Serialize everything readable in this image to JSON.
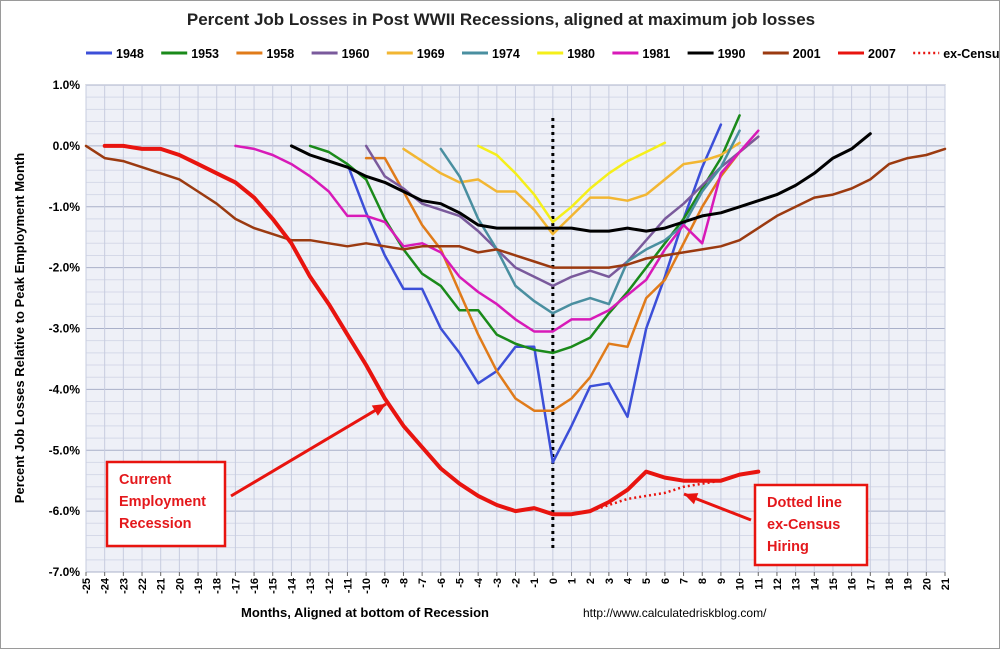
{
  "chart_data": {
    "type": "line",
    "title": "Percent Job Losses in Post WWII Recessions, aligned at maximum job losses",
    "xlabel": "Months, Aligned at bottom of Recession",
    "ylabel": "Percent Job Losses Relative to Peak Employment Month",
    "source": "http://www.calculatedriskblog.com/",
    "xlim": [
      -25,
      21
    ],
    "ylim": [
      -7.0,
      1.0
    ],
    "yticks": [
      1.0,
      0.0,
      -1.0,
      -2.0,
      -3.0,
      -4.0,
      -5.0,
      -6.0,
      -7.0
    ],
    "ytick_labels": [
      "1.0%",
      "0.0%",
      "-1.0%",
      "-2.0%",
      "-3.0%",
      "-4.0%",
      "-5.0%",
      "-6.0%",
      "-7.0%"
    ],
    "xticks": [
      -25,
      -24,
      -23,
      -22,
      -21,
      -20,
      -19,
      -18,
      -17,
      -16,
      -15,
      -14,
      -13,
      -12,
      -11,
      -10,
      -9,
      -8,
      -7,
      -6,
      -5,
      -4,
      -3,
      -2,
      -1,
      0,
      1,
      2,
      3,
      4,
      5,
      6,
      7,
      8,
      9,
      10,
      11,
      12,
      13,
      14,
      15,
      16,
      17,
      18,
      19,
      20,
      21
    ],
    "grid": true,
    "legend_position": "top",
    "vertical_marker_x": 0,
    "series": [
      {
        "name": "1948",
        "color": "#3c4fd8",
        "width": 2.5,
        "dash": false,
        "x": [
          -11,
          -10,
          -9,
          -8,
          -7,
          -6,
          -5,
          -4,
          -3,
          -2,
          -1,
          0,
          1,
          2,
          3,
          4,
          5,
          6,
          7,
          8,
          9
        ],
        "y": [
          -0.3,
          -1.1,
          -1.8,
          -2.35,
          -2.35,
          -3.0,
          -3.4,
          -3.9,
          -3.7,
          -3.3,
          -3.3,
          -5.2,
          -4.6,
          -3.95,
          -3.9,
          -4.45,
          -3.0,
          -2.15,
          -1.2,
          -0.35,
          0.35
        ]
      },
      {
        "name": "1953",
        "color": "#1a8a1a",
        "width": 2.5,
        "dash": false,
        "x": [
          -13,
          -12,
          -11,
          -10,
          -9,
          -8,
          -7,
          -6,
          -5,
          -4,
          -3,
          -2,
          -1,
          0,
          1,
          2,
          3,
          4,
          5,
          6,
          7,
          8,
          9,
          10
        ],
        "y": [
          0.0,
          -0.1,
          -0.3,
          -0.55,
          -1.2,
          -1.7,
          -2.1,
          -2.3,
          -2.7,
          -2.7,
          -3.1,
          -3.25,
          -3.35,
          -3.4,
          -3.3,
          -3.15,
          -2.75,
          -2.4,
          -2.0,
          -1.6,
          -1.2,
          -0.7,
          -0.2,
          0.5
        ]
      },
      {
        "name": "1958",
        "color": "#e07b1a",
        "width": 2.5,
        "dash": false,
        "x": [
          -10,
          -9,
          -8,
          -7,
          -6,
          -5,
          -4,
          -3,
          -2,
          -1,
          0,
          1,
          2,
          3,
          4,
          5,
          6,
          7,
          8,
          9,
          10,
          11
        ],
        "y": [
          -0.2,
          -0.2,
          -0.75,
          -1.3,
          -1.7,
          -2.4,
          -3.1,
          -3.7,
          -4.15,
          -4.35,
          -4.35,
          -4.15,
          -3.8,
          -3.25,
          -3.3,
          -2.5,
          -2.2,
          -1.6,
          -1.0,
          -0.5,
          -0.1,
          0.15
        ]
      },
      {
        "name": "1960",
        "color": "#7a5a9c",
        "width": 2.5,
        "dash": false,
        "x": [
          -10,
          -9,
          -8,
          -7,
          -6,
          -5,
          -4,
          -3,
          -2,
          -1,
          0,
          1,
          2,
          3,
          4,
          5,
          6,
          7,
          8,
          9,
          10,
          11
        ],
        "y": [
          0.0,
          -0.5,
          -0.7,
          -0.95,
          -1.05,
          -1.15,
          -1.4,
          -1.7,
          -2.0,
          -2.15,
          -2.3,
          -2.15,
          -2.05,
          -2.15,
          -1.9,
          -1.55,
          -1.2,
          -0.95,
          -0.65,
          -0.35,
          -0.1,
          0.15
        ]
      },
      {
        "name": "1969",
        "color": "#f2b632",
        "width": 2.5,
        "dash": false,
        "x": [
          -8,
          -7,
          -6,
          -5,
          -4,
          -3,
          -2,
          -1,
          0,
          1,
          2,
          3,
          4,
          5,
          6,
          7,
          8,
          9,
          10
        ],
        "y": [
          -0.05,
          -0.25,
          -0.45,
          -0.6,
          -0.55,
          -0.75,
          -0.75,
          -1.05,
          -1.45,
          -1.15,
          -0.85,
          -0.85,
          -0.9,
          -0.8,
          -0.55,
          -0.3,
          -0.25,
          -0.15,
          0.05
        ]
      },
      {
        "name": "1974",
        "color": "#4a8fa0",
        "width": 2.5,
        "dash": false,
        "x": [
          -6,
          -5,
          -4,
          -3,
          -2,
          -1,
          0,
          1,
          2,
          3,
          4,
          5,
          6,
          7,
          8,
          9,
          10
        ],
        "y": [
          -0.05,
          -0.5,
          -1.2,
          -1.7,
          -2.3,
          -2.55,
          -2.75,
          -2.6,
          -2.5,
          -2.6,
          -1.9,
          -1.7,
          -1.55,
          -1.3,
          -0.75,
          -0.35,
          0.25
        ]
      },
      {
        "name": "1980",
        "color": "#f5ef1a",
        "width": 2.5,
        "dash": false,
        "x": [
          -4,
          -3,
          -2,
          -1,
          0,
          1,
          2,
          3,
          4,
          5,
          6
        ],
        "y": [
          0.0,
          -0.15,
          -0.45,
          -0.8,
          -1.25,
          -1.0,
          -0.7,
          -0.45,
          -0.25,
          -0.1,
          0.05
        ]
      },
      {
        "name": "1981",
        "color": "#d81ab8",
        "width": 2.5,
        "dash": false,
        "x": [
          -17,
          -16,
          -15,
          -14,
          -13,
          -12,
          -11,
          -10,
          -9,
          -8,
          -7,
          -6,
          -5,
          -4,
          -3,
          -2,
          -1,
          0,
          1,
          2,
          3,
          4,
          5,
          6,
          7,
          8,
          9,
          10,
          11
        ],
        "y": [
          0.0,
          -0.05,
          -0.15,
          -0.3,
          -0.5,
          -0.75,
          -1.15,
          -1.15,
          -1.25,
          -1.65,
          -1.6,
          -1.75,
          -2.15,
          -2.4,
          -2.6,
          -2.85,
          -3.05,
          -3.05,
          -2.85,
          -2.85,
          -2.7,
          -2.45,
          -2.2,
          -1.7,
          -1.3,
          -1.6,
          -0.45,
          -0.1,
          0.25
        ]
      },
      {
        "name": "1990",
        "color": "#000000",
        "width": 3,
        "dash": false,
        "x": [
          -14,
          -13,
          -12,
          -11,
          -10,
          -9,
          -8,
          -7,
          -6,
          -5,
          -4,
          -3,
          -2,
          -1,
          0,
          1,
          2,
          3,
          4,
          5,
          6,
          7,
          8,
          9,
          10,
          11,
          12,
          13,
          14,
          15,
          16,
          17
        ],
        "y": [
          0.0,
          -0.15,
          -0.25,
          -0.35,
          -0.5,
          -0.6,
          -0.75,
          -0.9,
          -0.95,
          -1.1,
          -1.3,
          -1.35,
          -1.35,
          -1.35,
          -1.35,
          -1.35,
          -1.4,
          -1.4,
          -1.35,
          -1.4,
          -1.35,
          -1.25,
          -1.15,
          -1.1,
          -1.0,
          -0.9,
          -0.8,
          -0.65,
          -0.45,
          -0.2,
          -0.05,
          0.2
        ]
      },
      {
        "name": "2001",
        "color": "#9b3a10",
        "width": 2.5,
        "dash": false,
        "x": [
          -25,
          -24,
          -23,
          -22,
          -21,
          -20,
          -19,
          -18,
          -17,
          -16,
          -15,
          -14,
          -13,
          -12,
          -11,
          -10,
          -9,
          -8,
          -7,
          -6,
          -5,
          -4,
          -3,
          -2,
          -1,
          0,
          1,
          2,
          3,
          4,
          5,
          6,
          7,
          8,
          9,
          10,
          11,
          12,
          13,
          14,
          15,
          16,
          17,
          18,
          19,
          20,
          21
        ],
        "y": [
          0.0,
          -0.2,
          -0.25,
          -0.35,
          -0.45,
          -0.55,
          -0.75,
          -0.95,
          -1.2,
          -1.35,
          -1.45,
          -1.55,
          -1.55,
          -1.6,
          -1.65,
          -1.6,
          -1.65,
          -1.7,
          -1.65,
          -1.65,
          -1.65,
          -1.75,
          -1.7,
          -1.8,
          -1.9,
          -2.0,
          -2.0,
          -2.0,
          -2.0,
          -1.95,
          -1.85,
          -1.8,
          -1.75,
          -1.7,
          -1.65,
          -1.55,
          -1.35,
          -1.15,
          -1.0,
          -0.85,
          -0.8,
          -0.7,
          -0.55,
          -0.3,
          -0.2,
          -0.15,
          -0.05
        ]
      },
      {
        "name": "2007",
        "color": "#e8140f",
        "width": 4,
        "dash": false,
        "x": [
          -24,
          -23,
          -22,
          -21,
          -20,
          -19,
          -18,
          -17,
          -16,
          -15,
          -14,
          -13,
          -12,
          -11,
          -10,
          -9,
          -8,
          -7,
          -6,
          -5,
          -4,
          -3,
          -2,
          -1,
          0,
          1,
          2,
          3,
          4,
          5,
          6,
          7,
          8,
          9,
          10,
          11
        ],
        "y": [
          0.0,
          0.0,
          -0.05,
          -0.05,
          -0.15,
          -0.3,
          -0.45,
          -0.6,
          -0.85,
          -1.2,
          -1.6,
          -2.15,
          -2.6,
          -3.1,
          -3.6,
          -4.15,
          -4.6,
          -4.95,
          -5.3,
          -5.55,
          -5.75,
          -5.9,
          -6.0,
          -5.95,
          -6.05,
          -6.05,
          -6.0,
          -5.85,
          -5.65,
          -5.35,
          -5.45,
          -5.5,
          -5.5,
          -5.5,
          -5.4,
          -5.35
        ]
      },
      {
        "name": "ex-Census",
        "color": "#e8140f",
        "width": 2.5,
        "dash": true,
        "x": [
          1,
          2,
          3,
          4,
          5,
          6,
          7,
          8,
          9
        ],
        "y": [
          -6.05,
          -6.0,
          -5.9,
          -5.8,
          -5.75,
          -5.7,
          -5.6,
          -5.55,
          -5.5
        ]
      }
    ],
    "annotations": [
      {
        "lines": [
          "Current",
          "Employment",
          "Recession"
        ]
      },
      {
        "lines": [
          "Dotted line",
          "ex-Census",
          "Hiring"
        ]
      }
    ]
  }
}
